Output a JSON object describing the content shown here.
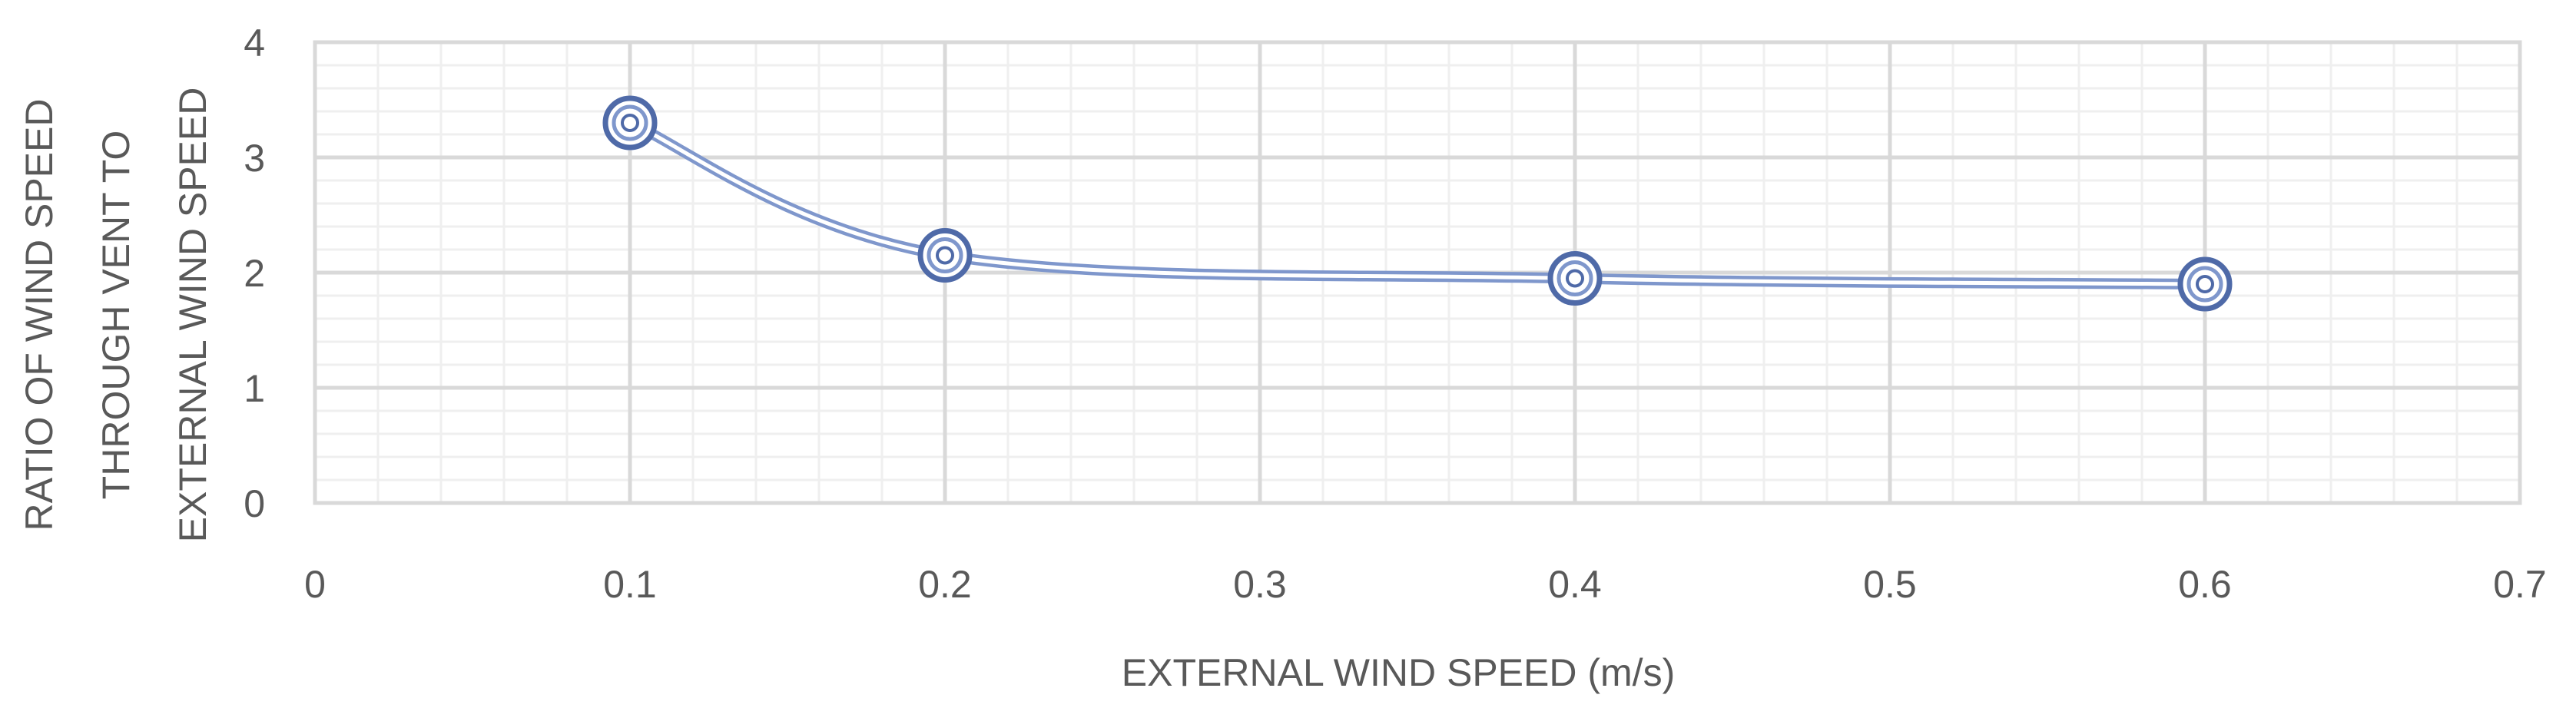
{
  "chart_data": {
    "type": "scatter",
    "title": "",
    "xlabel": "EXTERNAL WIND SPEED (m/s)",
    "ylabel_lines": [
      "RATIO OF  WIND SPEED",
      "THROUGH VENT TO",
      "EXTERNAL WIND SPEED"
    ],
    "xlim": [
      0,
      0.7
    ],
    "ylim": [
      0,
      4
    ],
    "x_ticks": [
      "0",
      "0.1",
      "0.2",
      "0.3",
      "0.4",
      "0.5",
      "0.6",
      "0.7"
    ],
    "y_ticks": [
      "0",
      "1",
      "2",
      "3",
      "4"
    ],
    "x_tick_values": [
      0,
      0.1,
      0.2,
      0.3,
      0.4,
      0.5,
      0.6,
      0.7
    ],
    "y_tick_values": [
      0,
      1,
      2,
      3,
      4
    ],
    "grid": true,
    "minor_grid": true,
    "line_style": "smooth",
    "series": [
      {
        "x": [
          0.1,
          0.2,
          0.4,
          0.6
        ],
        "y": [
          3.3,
          2.15,
          1.95,
          1.9
        ],
        "color": "#7f97cc",
        "marker_color": "#4f6aa8"
      }
    ],
    "gridline_color": "#d9d9d9",
    "minor_gridline_color": "#efefef"
  }
}
